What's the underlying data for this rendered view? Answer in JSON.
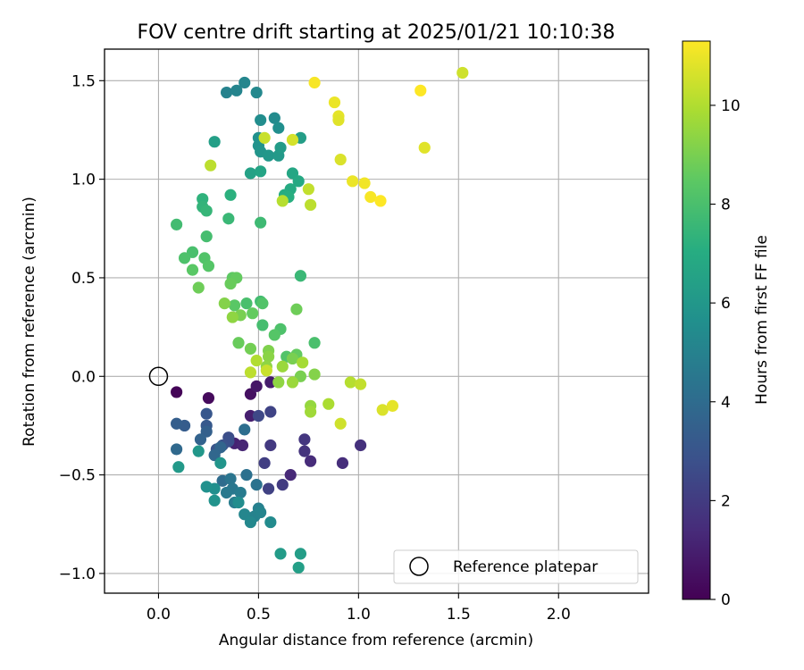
{
  "chart_data": {
    "type": "scatter",
    "title": "FOV centre drift starting at 2025/01/21 10:10:38",
    "xlabel": "Angular distance from reference (arcmin)",
    "ylabel": "Rotation from reference (arcmin)",
    "xlim": [
      -0.27,
      2.45
    ],
    "ylim": [
      -1.1,
      1.66
    ],
    "xticks": [
      0.0,
      0.5,
      1.0,
      1.5,
      2.0
    ],
    "xtick_labels": [
      "0.0",
      "0.5",
      "1.0",
      "1.5",
      "2.0"
    ],
    "yticks": [
      -1.0,
      -0.5,
      0.0,
      0.5,
      1.0,
      1.5
    ],
    "ytick_labels": [
      "−1.0",
      "−0.5",
      "0.0",
      "0.5",
      "1.0",
      "1.5"
    ],
    "grid": true,
    "colormap": "viridis",
    "colorbar": {
      "label": "Hours from first FF file",
      "range": [
        0,
        11.3
      ],
      "ticks": [
        0,
        2,
        4,
        6,
        8,
        10
      ],
      "tick_labels": [
        "0",
        "2",
        "4",
        "6",
        "8",
        "10"
      ]
    },
    "legend": {
      "placement": "lower-right",
      "entries": [
        "Reference platepar"
      ]
    },
    "reference_point": {
      "x": 0.0,
      "y": 0.0
    },
    "points": [
      {
        "x": 0.09,
        "y": -0.08,
        "t": 0.1
      },
      {
        "x": 0.25,
        "y": -0.11,
        "t": 0.3
      },
      {
        "x": 0.46,
        "y": -0.09,
        "t": 0.5
      },
      {
        "x": 0.49,
        "y": -0.05,
        "t": 0.7
      },
      {
        "x": 0.56,
        "y": -0.03,
        "t": 0.9
      },
      {
        "x": 0.46,
        "y": -0.2,
        "t": 1.0
      },
      {
        "x": 0.38,
        "y": -0.34,
        "t": 1.1
      },
      {
        "x": 0.42,
        "y": -0.35,
        "t": 1.2
      },
      {
        "x": 0.66,
        "y": -0.5,
        "t": 1.3
      },
      {
        "x": 0.76,
        "y": -0.43,
        "t": 1.4
      },
      {
        "x": 0.92,
        "y": -0.44,
        "t": 1.5
      },
      {
        "x": 1.01,
        "y": -0.35,
        "t": 1.6
      },
      {
        "x": 0.73,
        "y": -0.38,
        "t": 1.7
      },
      {
        "x": 0.73,
        "y": -0.32,
        "t": 1.8
      },
      {
        "x": 0.56,
        "y": -0.35,
        "t": 1.9
      },
      {
        "x": 0.62,
        "y": -0.55,
        "t": 2.0
      },
      {
        "x": 0.53,
        "y": -0.44,
        "t": 2.1
      },
      {
        "x": 0.55,
        "y": -0.57,
        "t": 2.2
      },
      {
        "x": 0.56,
        "y": -0.18,
        "t": 2.3
      },
      {
        "x": 0.5,
        "y": -0.2,
        "t": 2.5
      },
      {
        "x": 0.35,
        "y": -0.31,
        "t": 2.7
      },
      {
        "x": 0.35,
        "y": -0.33,
        "t": 2.8
      },
      {
        "x": 0.32,
        "y": -0.35,
        "t": 2.9
      },
      {
        "x": 0.29,
        "y": -0.37,
        "t": 3.0
      },
      {
        "x": 0.24,
        "y": -0.19,
        "t": 3.1
      },
      {
        "x": 0.24,
        "y": -0.25,
        "t": 3.2
      },
      {
        "x": 0.13,
        "y": -0.25,
        "t": 3.3
      },
      {
        "x": 0.09,
        "y": -0.24,
        "t": 3.4
      },
      {
        "x": 0.24,
        "y": -0.28,
        "t": 3.5
      },
      {
        "x": 0.21,
        "y": -0.32,
        "t": 3.6
      },
      {
        "x": 0.31,
        "y": -0.36,
        "t": 3.7
      },
      {
        "x": 0.28,
        "y": -0.4,
        "t": 3.8
      },
      {
        "x": 0.09,
        "y": -0.37,
        "t": 3.9
      },
      {
        "x": 0.32,
        "y": -0.53,
        "t": 4.0
      },
      {
        "x": 0.43,
        "y": -0.27,
        "t": 4.1
      },
      {
        "x": 0.44,
        "y": -0.5,
        "t": 4.2
      },
      {
        "x": 0.49,
        "y": -0.55,
        "t": 4.3
      },
      {
        "x": 0.36,
        "y": -0.52,
        "t": 4.4
      },
      {
        "x": 0.37,
        "y": -0.57,
        "t": 4.5
      },
      {
        "x": 0.34,
        "y": -0.59,
        "t": 4.6
      },
      {
        "x": 0.41,
        "y": -0.59,
        "t": 4.7
      },
      {
        "x": 0.38,
        "y": -0.64,
        "t": 4.8
      },
      {
        "x": 0.5,
        "y": -0.67,
        "t": 4.9
      },
      {
        "x": 0.48,
        "y": -0.71,
        "t": 5.0
      },
      {
        "x": 0.51,
        "y": -0.69,
        "t": 5.1
      },
      {
        "x": 0.43,
        "y": -0.7,
        "t": 5.2
      },
      {
        "x": 0.46,
        "y": -0.74,
        "t": 5.3
      },
      {
        "x": 0.56,
        "y": -0.74,
        "t": 5.4
      },
      {
        "x": 0.4,
        "y": -0.64,
        "t": 5.5
      },
      {
        "x": 0.28,
        "y": -0.57,
        "t": 5.6
      },
      {
        "x": 0.24,
        "y": -0.56,
        "t": 5.7
      },
      {
        "x": 0.28,
        "y": -0.63,
        "t": 5.8
      },
      {
        "x": 0.31,
        "y": -0.44,
        "t": 5.9
      },
      {
        "x": 0.2,
        "y": -0.38,
        "t": 6.0
      },
      {
        "x": 0.1,
        "y": -0.46,
        "t": 6.1
      },
      {
        "x": 0.61,
        "y": -0.9,
        "t": 6.2
      },
      {
        "x": 0.71,
        "y": -0.9,
        "t": 6.3
      },
      {
        "x": 0.7,
        "y": -0.97,
        "t": 6.4
      },
      {
        "x": 0.34,
        "y": 1.44,
        "t": 5.0
      },
      {
        "x": 0.39,
        "y": 1.45,
        "t": 5.1
      },
      {
        "x": 0.43,
        "y": 1.49,
        "t": 5.2
      },
      {
        "x": 0.49,
        "y": 1.44,
        "t": 5.3
      },
      {
        "x": 0.58,
        "y": 1.31,
        "t": 5.4
      },
      {
        "x": 0.51,
        "y": 1.3,
        "t": 5.5
      },
      {
        "x": 0.6,
        "y": 1.26,
        "t": 5.6
      },
      {
        "x": 0.5,
        "y": 1.21,
        "t": 5.7
      },
      {
        "x": 0.5,
        "y": 1.17,
        "t": 5.8
      },
      {
        "x": 0.51,
        "y": 1.14,
        "t": 5.9
      },
      {
        "x": 0.55,
        "y": 1.12,
        "t": 6.0
      },
      {
        "x": 0.6,
        "y": 1.12,
        "t": 6.1
      },
      {
        "x": 0.61,
        "y": 1.16,
        "t": 6.2
      },
      {
        "x": 0.71,
        "y": 1.21,
        "t": 6.3
      },
      {
        "x": 0.28,
        "y": 1.19,
        "t": 6.4
      },
      {
        "x": 0.46,
        "y": 1.03,
        "t": 6.5
      },
      {
        "x": 0.51,
        "y": 1.04,
        "t": 6.6
      },
      {
        "x": 0.67,
        "y": 1.03,
        "t": 6.7
      },
      {
        "x": 0.7,
        "y": 0.99,
        "t": 6.8
      },
      {
        "x": 0.66,
        "y": 0.95,
        "t": 6.9
      },
      {
        "x": 0.63,
        "y": 0.92,
        "t": 7.0
      },
      {
        "x": 0.65,
        "y": 0.91,
        "t": 7.1
      },
      {
        "x": 0.36,
        "y": 0.92,
        "t": 7.2
      },
      {
        "x": 0.22,
        "y": 0.9,
        "t": 7.3
      },
      {
        "x": 0.22,
        "y": 0.86,
        "t": 7.4
      },
      {
        "x": 0.24,
        "y": 0.84,
        "t": 7.5
      },
      {
        "x": 0.35,
        "y": 0.8,
        "t": 7.6
      },
      {
        "x": 0.51,
        "y": 0.78,
        "t": 7.7
      },
      {
        "x": 0.09,
        "y": 0.77,
        "t": 7.8
      },
      {
        "x": 0.24,
        "y": 0.71,
        "t": 7.9
      },
      {
        "x": 0.17,
        "y": 0.63,
        "t": 8.0
      },
      {
        "x": 0.13,
        "y": 0.6,
        "t": 8.1
      },
      {
        "x": 0.23,
        "y": 0.6,
        "t": 8.2
      },
      {
        "x": 0.25,
        "y": 0.56,
        "t": 8.3
      },
      {
        "x": 0.17,
        "y": 0.54,
        "t": 8.4
      },
      {
        "x": 0.37,
        "y": 0.5,
        "t": 8.5
      },
      {
        "x": 0.39,
        "y": 0.5,
        "t": 8.6
      },
      {
        "x": 0.36,
        "y": 0.47,
        "t": 8.7
      },
      {
        "x": 0.2,
        "y": 0.45,
        "t": 8.8
      },
      {
        "x": 0.71,
        "y": 0.51,
        "t": 7.6
      },
      {
        "x": 0.51,
        "y": 0.38,
        "t": 7.8
      },
      {
        "x": 0.44,
        "y": 0.37,
        "t": 8.0
      },
      {
        "x": 0.52,
        "y": 0.37,
        "t": 8.2
      },
      {
        "x": 0.38,
        "y": 0.36,
        "t": 8.4
      },
      {
        "x": 0.47,
        "y": 0.32,
        "t": 8.6
      },
      {
        "x": 0.69,
        "y": 0.34,
        "t": 8.8
      },
      {
        "x": 0.41,
        "y": 0.31,
        "t": 9.0
      },
      {
        "x": 0.33,
        "y": 0.37,
        "t": 9.2
      },
      {
        "x": 0.37,
        "y": 0.3,
        "t": 9.4
      },
      {
        "x": 0.52,
        "y": 0.26,
        "t": 7.9
      },
      {
        "x": 0.61,
        "y": 0.24,
        "t": 8.1
      },
      {
        "x": 0.58,
        "y": 0.21,
        "t": 8.3
      },
      {
        "x": 0.78,
        "y": 0.17,
        "t": 8.0
      },
      {
        "x": 0.4,
        "y": 0.17,
        "t": 8.7
      },
      {
        "x": 0.46,
        "y": 0.14,
        "t": 8.9
      },
      {
        "x": 0.55,
        "y": 0.13,
        "t": 9.1
      },
      {
        "x": 0.55,
        "y": 0.1,
        "t": 9.3
      },
      {
        "x": 0.64,
        "y": 0.1,
        "t": 8.2
      },
      {
        "x": 0.69,
        "y": 0.11,
        "t": 8.6
      },
      {
        "x": 0.67,
        "y": 0.09,
        "t": 9.0
      },
      {
        "x": 0.54,
        "y": 0.05,
        "t": 9.4
      },
      {
        "x": 0.62,
        "y": 0.05,
        "t": 9.6
      },
      {
        "x": 0.72,
        "y": 0.07,
        "t": 9.8
      },
      {
        "x": 0.49,
        "y": 0.08,
        "t": 10.0
      },
      {
        "x": 0.46,
        "y": 0.02,
        "t": 10.2
      },
      {
        "x": 0.54,
        "y": 0.03,
        "t": 10.4
      },
      {
        "x": 0.71,
        "y": 0.0,
        "t": 9.0
      },
      {
        "x": 0.78,
        "y": 0.01,
        "t": 9.2
      },
      {
        "x": 0.6,
        "y": -0.03,
        "t": 9.4
      },
      {
        "x": 0.67,
        "y": -0.03,
        "t": 9.6
      },
      {
        "x": 0.76,
        "y": -0.15,
        "t": 9.5
      },
      {
        "x": 0.76,
        "y": -0.18,
        "t": 9.7
      },
      {
        "x": 0.85,
        "y": -0.14,
        "t": 9.9
      },
      {
        "x": 0.96,
        "y": -0.03,
        "t": 10.1
      },
      {
        "x": 1.01,
        "y": -0.04,
        "t": 10.3
      },
      {
        "x": 0.91,
        "y": -0.24,
        "t": 10.5
      },
      {
        "x": 1.12,
        "y": -0.17,
        "t": 10.7
      },
      {
        "x": 1.17,
        "y": -0.15,
        "t": 10.9
      },
      {
        "x": 0.78,
        "y": 1.49,
        "t": 11.2
      },
      {
        "x": 0.88,
        "y": 1.39,
        "t": 11.0
      },
      {
        "x": 0.9,
        "y": 1.32,
        "t": 10.9
      },
      {
        "x": 0.9,
        "y": 1.3,
        "t": 10.8
      },
      {
        "x": 0.67,
        "y": 1.2,
        "t": 10.6
      },
      {
        "x": 0.53,
        "y": 1.21,
        "t": 10.4
      },
      {
        "x": 0.91,
        "y": 1.1,
        "t": 10.7
      },
      {
        "x": 0.26,
        "y": 1.07,
        "t": 10.2
      },
      {
        "x": 0.97,
        "y": 0.99,
        "t": 11.0
      },
      {
        "x": 1.03,
        "y": 0.98,
        "t": 11.1
      },
      {
        "x": 1.06,
        "y": 0.91,
        "t": 11.2
      },
      {
        "x": 1.11,
        "y": 0.89,
        "t": 11.3
      },
      {
        "x": 0.75,
        "y": 0.95,
        "t": 10.3
      },
      {
        "x": 0.62,
        "y": 0.89,
        "t": 10.1
      },
      {
        "x": 0.76,
        "y": 0.87,
        "t": 10.2
      },
      {
        "x": 1.31,
        "y": 1.45,
        "t": 11.3
      },
      {
        "x": 1.52,
        "y": 1.54,
        "t": 10.5
      },
      {
        "x": 1.33,
        "y": 1.16,
        "t": 10.8
      }
    ]
  }
}
